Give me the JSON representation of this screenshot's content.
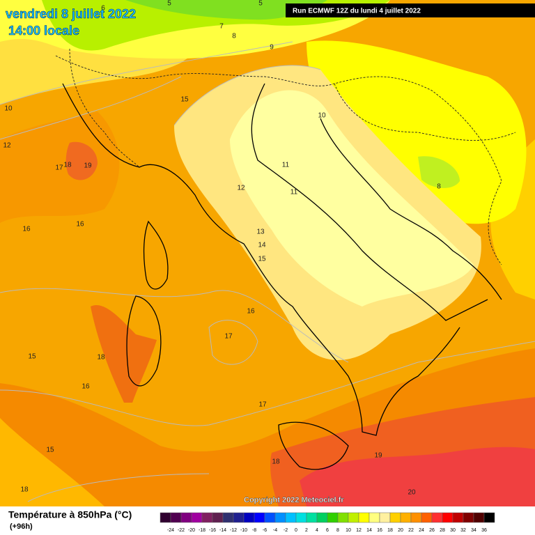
{
  "header": {
    "date": "vendredi 8 juillet 2022",
    "time": "14:00 locale",
    "run": "Run ECMWF 12Z du lundi 4 juillet 2022",
    "copyright": "Copyright 2022 Meteociel.fr"
  },
  "contour_labels": [
    5,
    5,
    6,
    7,
    8,
    9,
    10,
    10,
    12,
    15,
    17,
    18,
    19,
    11,
    11,
    12,
    8,
    16,
    16,
    13,
    14,
    15,
    16,
    17,
    15,
    18,
    16,
    17,
    15,
    18,
    19,
    18,
    20
  ],
  "legend": {
    "title": "Température à 850hPa (°C)",
    "lead_time": "(+96h)",
    "ticks": [
      -24,
      -22,
      -20,
      -18,
      -16,
      -14,
      -12,
      -10,
      -8,
      -6,
      -4,
      -2,
      0,
      2,
      4,
      6,
      8,
      10,
      12,
      14,
      16,
      18,
      20,
      22,
      24,
      26,
      28,
      30,
      32,
      34,
      36
    ]
  }
}
